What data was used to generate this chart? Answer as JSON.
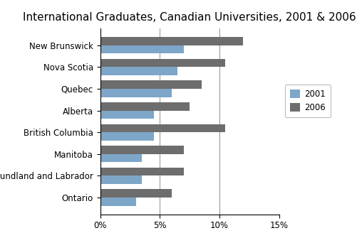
{
  "title": "International Graduates, Canadian Universities, 2001 & 2006",
  "categories": [
    "New Brunswick",
    "Nova Scotia",
    "Quebec",
    "Alberta",
    "British Columbia",
    "Manitoba",
    "Newfoundland and Labrador",
    "Ontario"
  ],
  "values_2001": [
    7.0,
    6.5,
    6.0,
    4.5,
    4.5,
    3.5,
    3.5,
    3.0
  ],
  "values_2006": [
    12.0,
    10.5,
    8.5,
    7.5,
    10.5,
    7.0,
    7.0,
    6.0
  ],
  "color_2001": "#7da6c8",
  "color_2006": "#6d6d6d",
  "legend_labels": [
    "2001",
    "2006"
  ],
  "xlim": [
    0,
    15
  ],
  "xtick_values": [
    0,
    5,
    10,
    15
  ],
  "xtick_labels": [
    "0%",
    "5%",
    "10%",
    "15%"
  ],
  "bar_height": 0.38,
  "background_color": "#ffffff",
  "title_fontsize": 11,
  "tick_fontsize": 8.5
}
